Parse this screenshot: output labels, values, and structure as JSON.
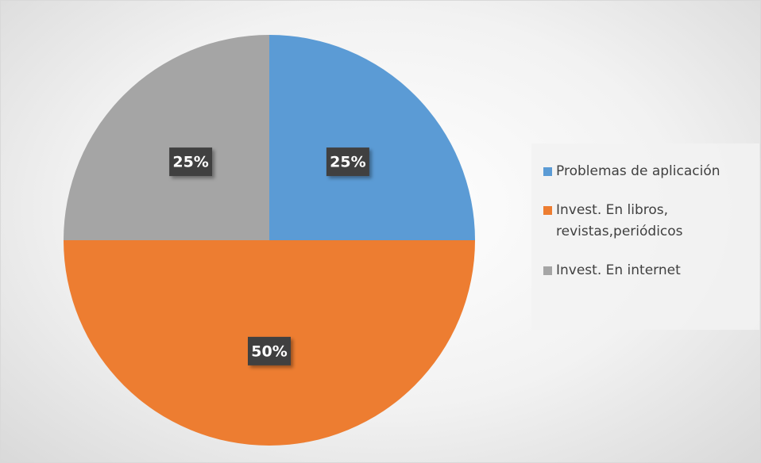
{
  "chart_data": {
    "type": "pie",
    "categories": [
      "Problemas de aplicación",
      "Invest. En libros, revistas,periódicos",
      "Invest. En internet"
    ],
    "values": [
      25,
      50,
      25
    ],
    "value_labels": [
      "25%",
      "50%",
      "25%"
    ],
    "colors": [
      "#5b9bd5",
      "#ed7d31",
      "#a5a5a5"
    ],
    "legend": "right"
  }
}
